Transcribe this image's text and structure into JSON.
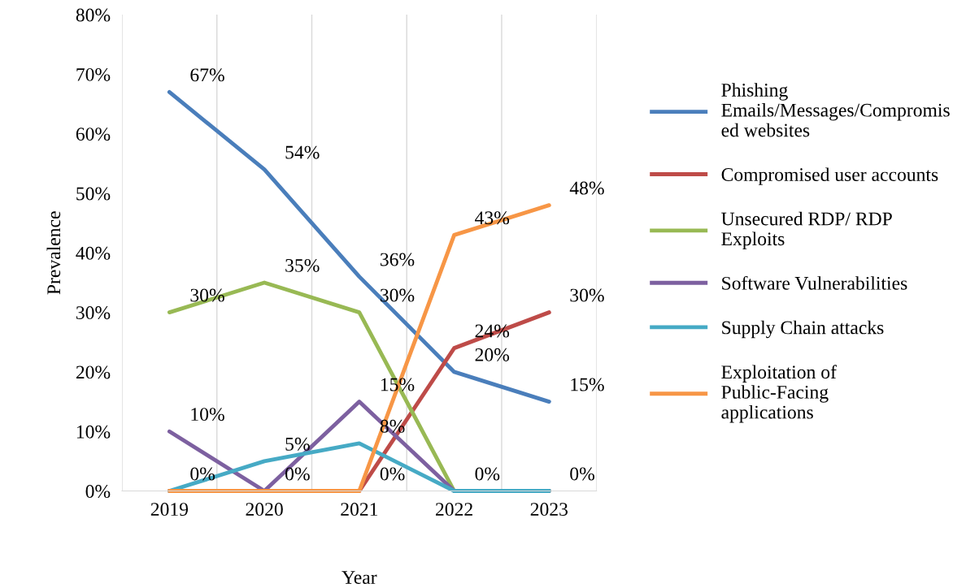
{
  "chart_data": {
    "type": "line",
    "xlabel": "Year",
    "ylabel": "Prevalence",
    "categories": [
      "2019",
      "2020",
      "2021",
      "2022",
      "2023"
    ],
    "ylim": [
      0,
      0.8
    ],
    "yticks": [
      {
        "value": 0,
        "label": "0%"
      },
      {
        "value": 0.1,
        "label": "10%"
      },
      {
        "value": 0.2,
        "label": "20%"
      },
      {
        "value": 0.3,
        "label": "30%"
      },
      {
        "value": 0.4,
        "label": "40%"
      },
      {
        "value": 0.5,
        "label": "50%"
      },
      {
        "value": 0.6,
        "label": "60%"
      },
      {
        "value": 0.7,
        "label": "70%"
      },
      {
        "value": 0.8,
        "label": "80%"
      }
    ],
    "grid": "x",
    "legend": "right",
    "marker": "none",
    "line_style": "solid",
    "series": [
      {
        "name": "Phishing Emails/Messages/Compromised websites",
        "color": "#4a7ebb",
        "values": [
          0.67,
          0.54,
          0.36,
          0.2,
          0.15
        ],
        "value_labels": [
          "67%",
          "54%",
          "36%",
          "20%",
          "15%"
        ]
      },
      {
        "name": "Compromised user accounts",
        "color": "#be4b48",
        "values": [
          0,
          0,
          0,
          0.24,
          0.3
        ],
        "value_labels": [
          "0%",
          "0%",
          "0%",
          "24%",
          "30%"
        ]
      },
      {
        "name": "Unsecured RDP/ RDP Exploits",
        "color": "#98b954",
        "values": [
          0.3,
          0.35,
          0.3,
          0,
          0
        ],
        "value_labels": [
          "30%",
          "35%",
          "30%",
          null,
          null
        ]
      },
      {
        "name": "Software Vulnerabilities",
        "color": "#7d60a0",
        "values": [
          0.1,
          0,
          0.15,
          0,
          0
        ],
        "value_labels": [
          "10%",
          null,
          "15%",
          null,
          null
        ]
      },
      {
        "name": "Supply Chain attacks",
        "color": "#46aac5",
        "values": [
          0,
          0.05,
          0.08,
          0,
          0
        ],
        "value_labels": [
          null,
          "5%",
          "8%",
          "0%",
          "0%"
        ]
      },
      {
        "name": "Exploitation of Public-Facing applications",
        "color": "#f79646",
        "values": [
          0,
          0,
          0,
          0.43,
          0.48
        ],
        "value_labels": [
          null,
          null,
          null,
          "43%",
          "48%"
        ]
      }
    ]
  }
}
